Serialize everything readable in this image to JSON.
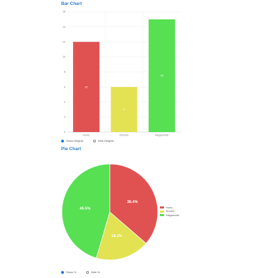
{
  "bar_section": {
    "title": "Bar Chart",
    "radios": [
      {
        "label": "Show Heights",
        "selected": true
      },
      {
        "label": "Hide Heights",
        "selected": false
      }
    ]
  },
  "pie_section": {
    "title": "Pie Chart",
    "radios": [
      {
        "label": "Show %",
        "selected": true
      },
      {
        "label": "Hide %",
        "selected": false
      }
    ]
  },
  "chart_data": [
    {
      "type": "bar",
      "categories": [
        "Horns",
        "Rrooms",
        "Hargumonts"
      ],
      "values": [
        12,
        6,
        15
      ],
      "data_labels": [
        "12",
        "6",
        "15"
      ],
      "colors": [
        "#e05252",
        "#e2e253",
        "#56e052"
      ],
      "ylim": [
        0,
        16
      ],
      "yticks": [
        0,
        2,
        4,
        6,
        8,
        10,
        12,
        14,
        16
      ],
      "ytick_labels": [
        "0",
        "2",
        "4",
        "6",
        "8",
        "10",
        "12",
        "14",
        "16"
      ],
      "grid": true
    },
    {
      "type": "pie",
      "labels": [
        "Horns",
        "Rrooms",
        "Hargumonts"
      ],
      "values": [
        36.4,
        18.2,
        45.5
      ],
      "value_labels": [
        "36.4%",
        "18.2%",
        "45.5%"
      ],
      "colors": [
        "#e05252",
        "#e2e253",
        "#56e052"
      ],
      "legend": "right"
    }
  ]
}
